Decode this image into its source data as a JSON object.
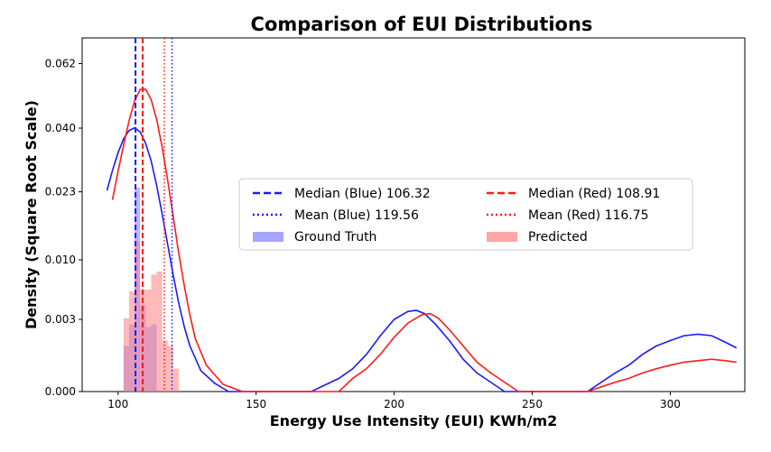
{
  "chart_data": {
    "type": "histogram+kde",
    "title": "Comparison of EUI Distributions",
    "xlabel": "Energy Use Intensity (EUI) KWh/m2",
    "ylabel": "Density (Square Root Scale)",
    "y_scale": "sqrt",
    "xlim": [
      87,
      327
    ],
    "ylim": [
      0,
      0.0721
    ],
    "x_ticks": [
      100,
      150,
      200,
      250,
      300
    ],
    "y_ticks": [
      0.0,
      0.003,
      0.01,
      0.023,
      0.04,
      0.062
    ],
    "y_tick_labels": [
      "0.000",
      "0.003",
      "0.010",
      "0.023",
      "0.040",
      "0.062"
    ],
    "grid": false,
    "legend_position": "center-right",
    "colors": {
      "blue": "#1a1aff",
      "red": "#ff1a1a",
      "blue_bar": "#8080ff",
      "red_bar": "#ff8080"
    },
    "series": [
      {
        "name": "Ground Truth",
        "color": "#1a1aff",
        "median": 106.32,
        "mean": 119.56,
        "kde": [
          [
            96,
            0.0233
          ],
          [
            98,
            0.0282
          ],
          [
            100,
            0.0329
          ],
          [
            102,
            0.0368
          ],
          [
            104,
            0.0393
          ],
          [
            106,
            0.0401
          ],
          [
            108,
            0.0389
          ],
          [
            110,
            0.0355
          ],
          [
            112,
            0.0306
          ],
          [
            114,
            0.0244
          ],
          [
            116,
            0.0181
          ],
          [
            118,
            0.0124
          ],
          [
            120,
            0.0078
          ],
          [
            122,
            0.0045
          ],
          [
            124,
            0.0024
          ],
          [
            126,
            0.0012
          ],
          [
            130,
            0.00025
          ],
          [
            135,
            4e-05
          ],
          [
            140,
            0.0
          ],
          [
            150,
            0.0
          ],
          [
            170,
            0.0
          ],
          [
            180,
            0.0001
          ],
          [
            185,
            0.0003
          ],
          [
            190,
            0.0008
          ],
          [
            195,
            0.0018
          ],
          [
            200,
            0.003
          ],
          [
            205,
            0.0037
          ],
          [
            208,
            0.0038
          ],
          [
            211,
            0.0035
          ],
          [
            215,
            0.0026
          ],
          [
            220,
            0.0015
          ],
          [
            225,
            0.0006
          ],
          [
            230,
            0.0002
          ],
          [
            240,
            0.0
          ],
          [
            260,
            0.0
          ],
          [
            270,
            0.0
          ],
          [
            280,
            0.0002
          ],
          [
            285,
            0.0004
          ],
          [
            290,
            0.0008
          ],
          [
            295,
            0.0012
          ],
          [
            300,
            0.0015
          ],
          [
            305,
            0.0018
          ],
          [
            310,
            0.0019
          ],
          [
            315,
            0.0018
          ],
          [
            320,
            0.0014
          ],
          [
            324,
            0.0011
          ]
        ],
        "bins": [
          [
            102,
            0.0012
          ],
          [
            104,
            0.0026
          ],
          [
            106,
            0.024
          ],
          [
            108,
            0.0043
          ],
          [
            110,
            0.0024
          ],
          [
            112,
            0.0026
          ]
        ]
      },
      {
        "name": "Predicted",
        "color": "#ff1a1a",
        "median": 108.91,
        "mean": 116.75,
        "kde": [
          [
            98,
            0.0212
          ],
          [
            100,
            0.028
          ],
          [
            102,
            0.035
          ],
          [
            104,
            0.0423
          ],
          [
            106,
            0.0487
          ],
          [
            108,
            0.0526
          ],
          [
            110,
            0.0527
          ],
          [
            112,
            0.0491
          ],
          [
            114,
            0.0426
          ],
          [
            116,
            0.0343
          ],
          [
            118,
            0.0256
          ],
          [
            120,
            0.0176
          ],
          [
            122,
            0.011
          ],
          [
            124,
            0.0064
          ],
          [
            126,
            0.0034
          ],
          [
            128,
            0.0016
          ],
          [
            132,
            0.0004
          ],
          [
            138,
            3e-05
          ],
          [
            145,
            0.0
          ],
          [
            165,
            0.0
          ],
          [
            180,
            0.0
          ],
          [
            185,
            0.0001
          ],
          [
            190,
            0.0003
          ],
          [
            195,
            0.0008
          ],
          [
            200,
            0.0017
          ],
          [
            205,
            0.0027
          ],
          [
            210,
            0.0034
          ],
          [
            213,
            0.0035
          ],
          [
            216,
            0.0031
          ],
          [
            220,
            0.0022
          ],
          [
            225,
            0.0012
          ],
          [
            230,
            0.0005
          ],
          [
            235,
            0.0002
          ],
          [
            245,
            0.0
          ],
          [
            270,
            0.0
          ],
          [
            280,
            5e-05
          ],
          [
            285,
            0.0001
          ],
          [
            290,
            0.0002
          ],
          [
            295,
            0.0003
          ],
          [
            300,
            0.0004
          ],
          [
            305,
            0.0005
          ],
          [
            310,
            0.00055
          ],
          [
            315,
            0.0006
          ],
          [
            320,
            0.00055
          ],
          [
            324,
            0.0005
          ]
        ],
        "bins": [
          [
            102,
            0.0031
          ],
          [
            104,
            0.0058
          ],
          [
            106,
            0.013
          ],
          [
            108,
            0.006
          ],
          [
            110,
            0.006
          ],
          [
            112,
            0.0079
          ],
          [
            114,
            0.0083
          ],
          [
            116,
            0.0015
          ],
          [
            118,
            0.0012
          ],
          [
            120,
            0.0003
          ]
        ]
      }
    ],
    "legend": [
      {
        "label": "Median (Blue) 106.32",
        "color": "#1a1aff",
        "style": "dashed"
      },
      {
        "label": "Median (Red) 108.91",
        "color": "#ff1a1a",
        "style": "dashed"
      },
      {
        "label": "Mean (Blue) 119.56",
        "color": "#1a1aff",
        "style": "dotted"
      },
      {
        "label": "Mean (Red) 116.75",
        "color": "#ff1a1a",
        "style": "dotted"
      },
      {
        "label": "Ground Truth",
        "color": "#8080ff",
        "style": "patch"
      },
      {
        "label": "Predicted",
        "color": "#ff8080",
        "style": "patch"
      }
    ]
  }
}
